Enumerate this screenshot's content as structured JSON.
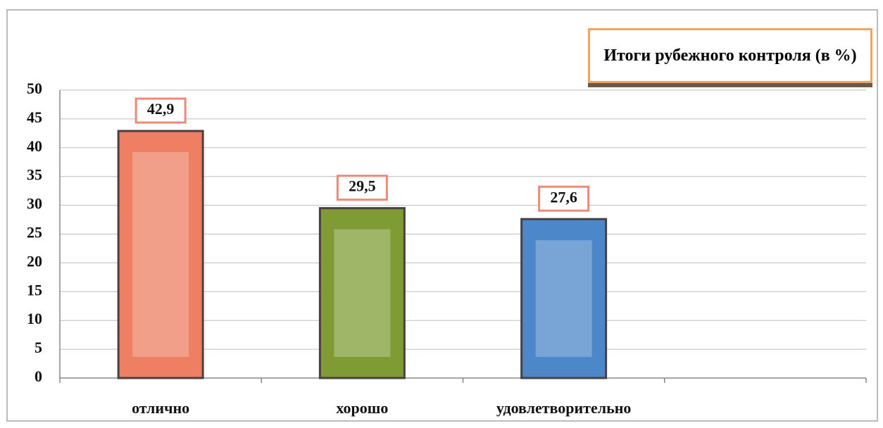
{
  "chart_data": {
    "type": "bar",
    "title": "Итоги рубежного контроля (в %)",
    "categories": [
      "отлично",
      "хорошо",
      "удовлетворительно",
      null
    ],
    "values": [
      42.9,
      29.5,
      27.6,
      null
    ],
    "value_labels": [
      "42,9",
      "29,5",
      "27,6",
      null
    ],
    "colors": [
      "#ee7f62",
      "#7f9c34",
      "#4b87c9",
      null
    ],
    "ylim": [
      0,
      50
    ],
    "yticks": [
      0,
      5,
      10,
      15,
      20,
      25,
      30,
      35,
      40,
      45,
      50
    ],
    "grid": true
  }
}
